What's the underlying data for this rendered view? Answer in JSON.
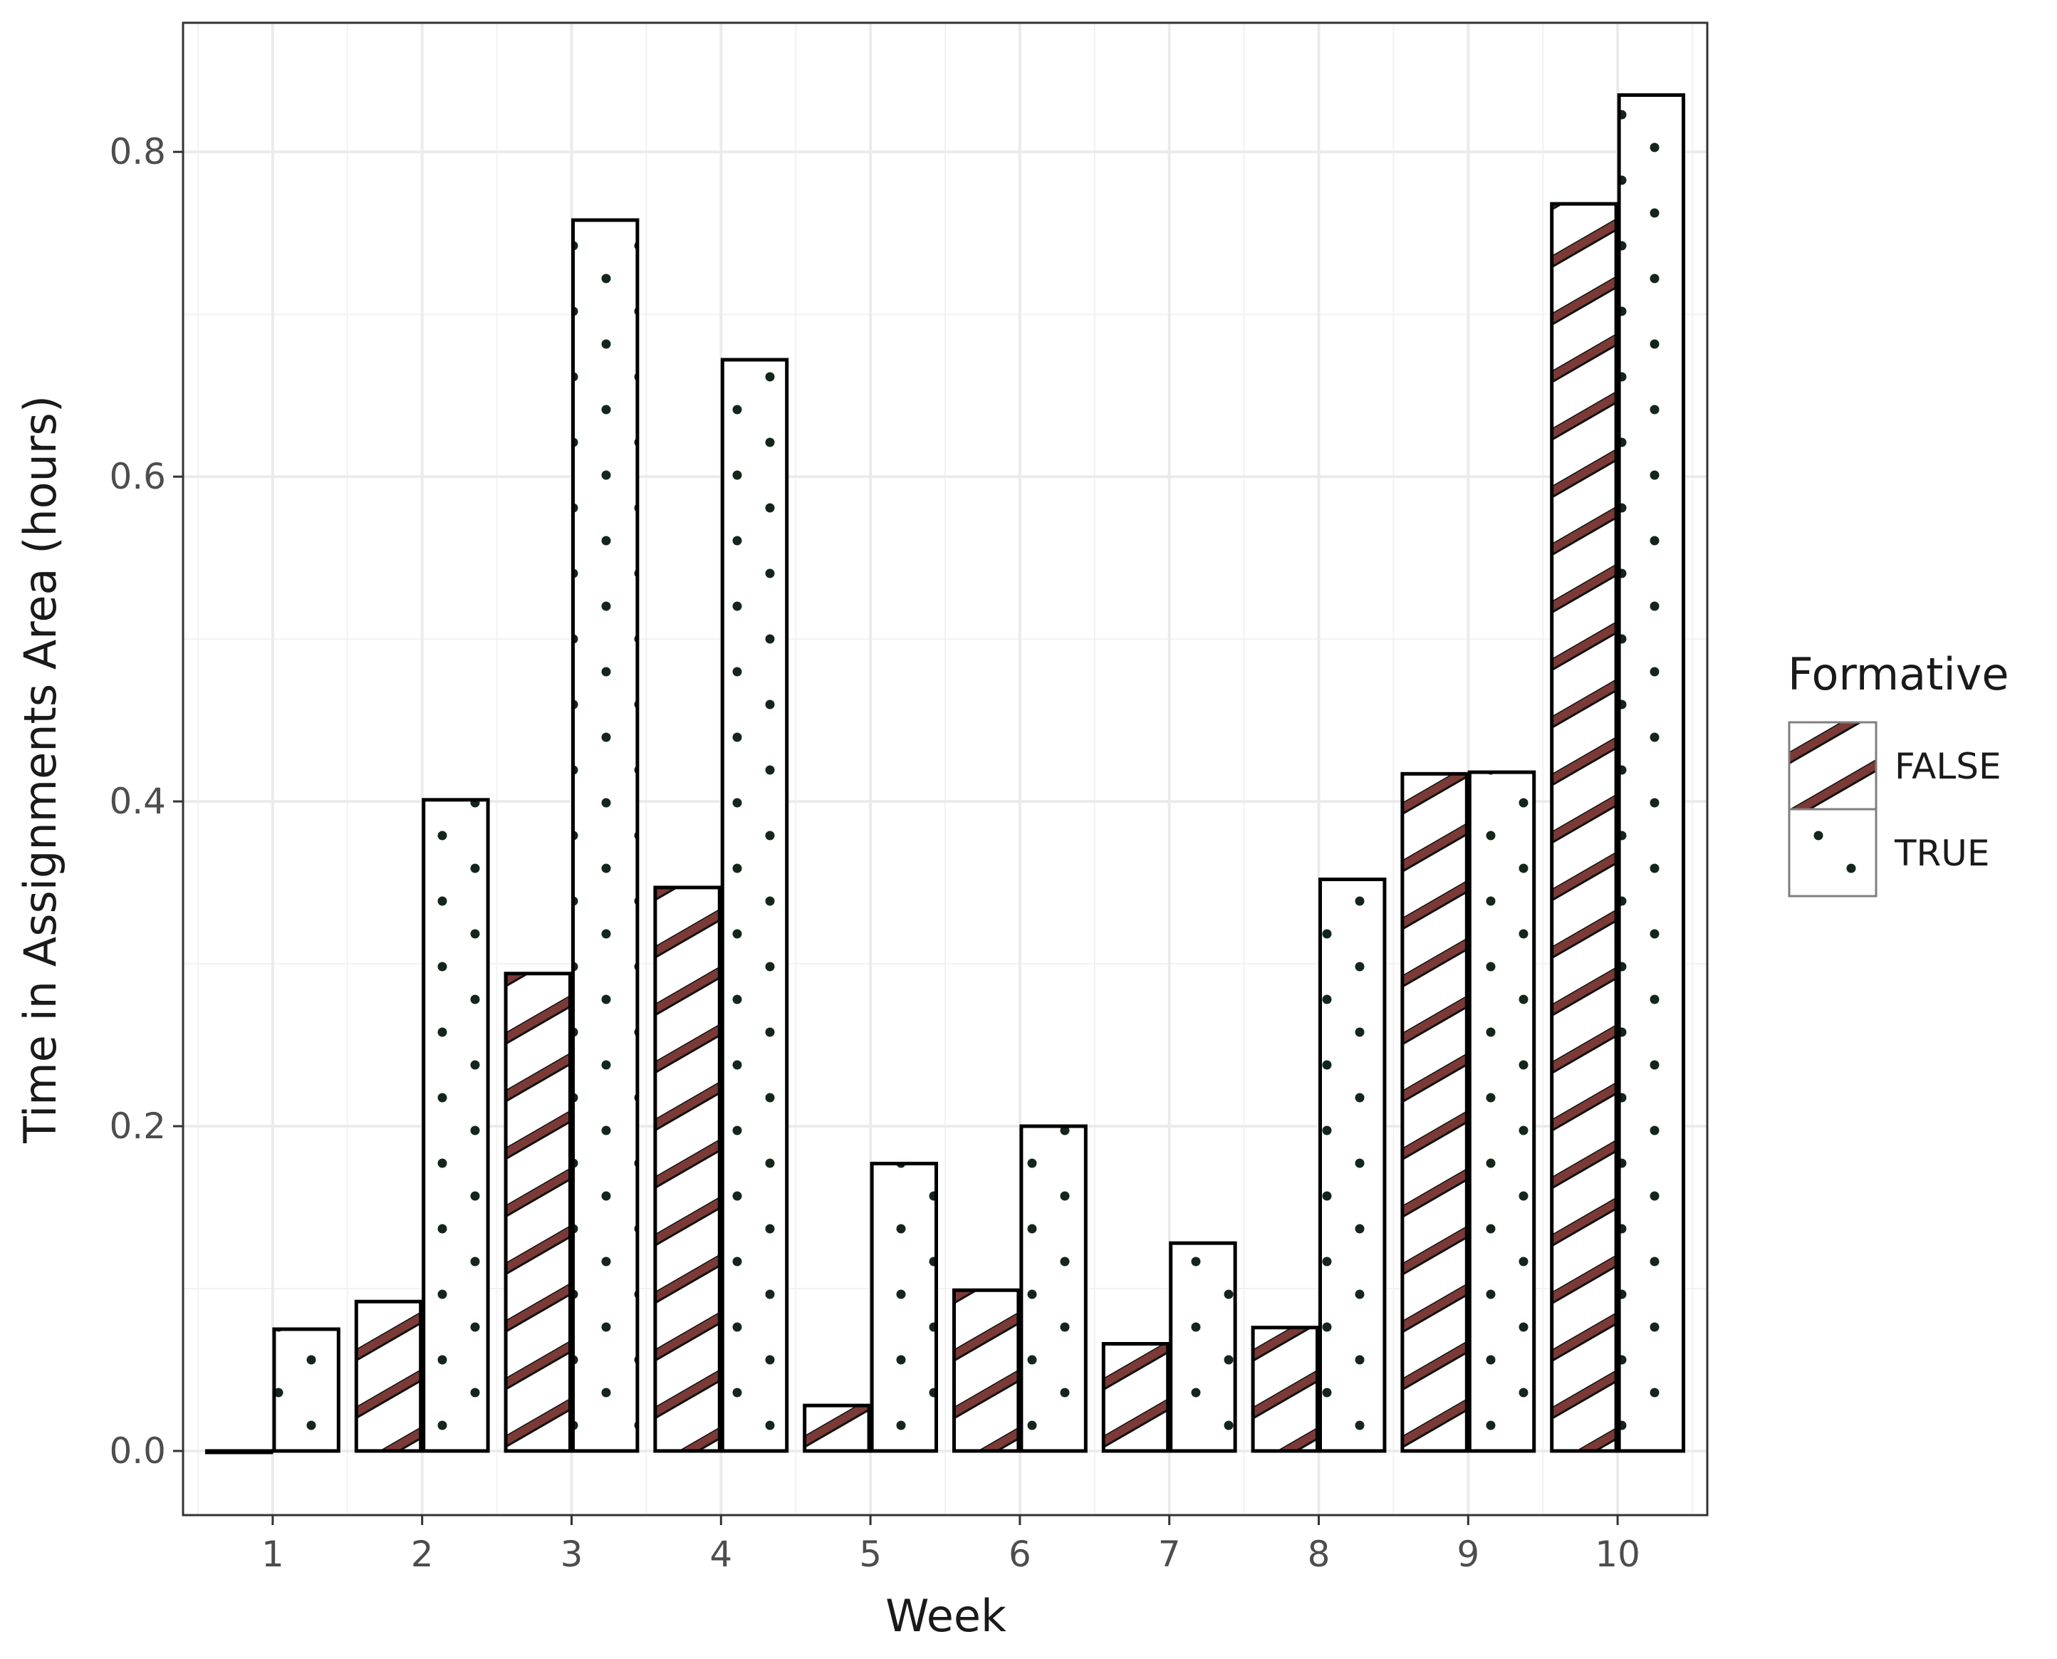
{
  "chart_data": {
    "type": "bar",
    "xlabel": "Week",
    "ylabel": "Time in Assignments Area (hours)",
    "categories": [
      "1",
      "2",
      "3",
      "4",
      "5",
      "6",
      "7",
      "8",
      "9",
      "10"
    ],
    "series": [
      {
        "name": "FALSE",
        "pattern": "diagonal-stripes",
        "stripe_color": "#7b3a36",
        "values": [
          0.0,
          0.092,
          0.294,
          0.347,
          0.028,
          0.099,
          0.066,
          0.076,
          0.417,
          0.768
        ]
      },
      {
        "name": "TRUE",
        "pattern": "dots",
        "dot_color": "#14261c",
        "values": [
          0.075,
          0.401,
          0.758,
          0.672,
          0.177,
          0.2,
          0.128,
          0.352,
          0.418,
          0.835
        ]
      }
    ],
    "ylim": [
      -0.0395,
      0.8795
    ],
    "yticks": [
      "0.0",
      "0.2",
      "0.4",
      "0.6",
      "0.8"
    ],
    "legend": {
      "title": "Formative",
      "position": "right"
    },
    "grid": true,
    "theme": "bw"
  }
}
